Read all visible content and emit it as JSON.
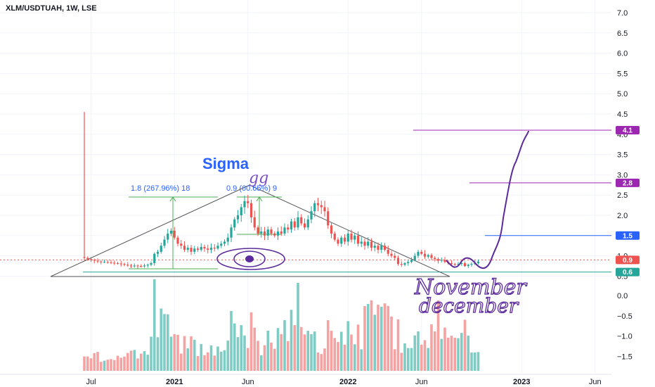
{
  "header": {
    "symbol_title": "XLM/USDTUAH, 1W, LSE"
  },
  "colors": {
    "up": "#26a69a",
    "down": "#ef5350",
    "vol_up": "#7fccc4",
    "vol_down": "#f4a3a2",
    "purple": "#9c27b0",
    "hand_purple": "#5b2b9c",
    "blue": "#2962ff",
    "green": "#4caf50",
    "teal": "#26a69a",
    "red": "#ef5350",
    "grid": "#f0f3fa",
    "trend": "#555555"
  },
  "annotations": {
    "sigma_label": "Sigma",
    "gg_label": "gg",
    "fib1_label": "1.8 (267.96%) 18",
    "fib2_label": "0.9 (60.65%) 9",
    "november_label": "November",
    "december_label": "december"
  },
  "chart_data": {
    "type": "candlestick",
    "title": "XLM/USDTUAH, 1W, LSE",
    "price_axis": {
      "ylim": [
        0.5,
        7.0
      ],
      "ticks": [
        7.0,
        6.5,
        6.0,
        5.5,
        5.0,
        4.5,
        4.0,
        3.5,
        3.0,
        2.5,
        2.0,
        1.5,
        1.0,
        0.5
      ],
      "tick_labels": [
        "7.0",
        "6.5",
        "6.0",
        "5.5",
        "5.0",
        "4.5",
        "4.0",
        "3.5",
        "3.0",
        "2.5",
        "2.0",
        "1.5",
        "1.0",
        "0.5"
      ]
    },
    "volume_axis": {
      "ticks": [
        0.0,
        -0.5,
        -1.0,
        -1.5
      ],
      "tick_labels": [
        "0.0",
        "−0.5",
        "−1.0",
        "−1.5"
      ]
    },
    "x_axis": {
      "tick_labels": [
        "Jul",
        "2021",
        "Jun",
        "2022",
        "Jun",
        "2023",
        "Jun"
      ],
      "tick_weeks": [
        2,
        27,
        49,
        79,
        101,
        131,
        153
      ]
    },
    "price_levels": [
      {
        "value": 4.1,
        "label": "4.1",
        "color": "#9c27b0"
      },
      {
        "value": 2.8,
        "label": "2.8",
        "color": "#9c27b0"
      },
      {
        "value": 1.5,
        "label": "1.5",
        "color": "#2962ff"
      },
      {
        "value": 0.9,
        "label": "0.9",
        "color": "#ef5350"
      },
      {
        "value": 0.6,
        "label": "0.6",
        "color": "#26a69a"
      }
    ],
    "candles_close": [
      0.95,
      0.92,
      0.9,
      0.88,
      0.86,
      0.85,
      0.85,
      0.84,
      0.83,
      0.82,
      0.81,
      0.8,
      0.78,
      0.76,
      0.74,
      0.76,
      0.75,
      0.74,
      0.76,
      0.78,
      0.82,
      1.05,
      1.1,
      1.25,
      1.4,
      1.55,
      1.62,
      1.45,
      1.3,
      1.25,
      1.15,
      1.2,
      1.1,
      1.18,
      1.15,
      1.22,
      1.18,
      1.15,
      1.2,
      1.18,
      1.25,
      1.3,
      1.35,
      1.45,
      1.7,
      1.9,
      2.0,
      2.2,
      2.35,
      2.3,
      1.95,
      1.7,
      1.55,
      1.6,
      1.5,
      1.65,
      1.55,
      1.5,
      1.6,
      1.55,
      1.7,
      1.65,
      1.85,
      1.7,
      1.95,
      1.8,
      1.7,
      1.9,
      2.1,
      2.3,
      2.25,
      2.2,
      2.1,
      1.75,
      1.55,
      1.4,
      1.3,
      1.45,
      1.35,
      1.55,
      1.4,
      1.5,
      1.3,
      1.35,
      1.25,
      1.35,
      1.2,
      1.25,
      1.15,
      1.25,
      1.15,
      1.05,
      1.0,
      0.95,
      0.8,
      0.78,
      0.82,
      0.85,
      0.9,
      1.0,
      1.1,
      1.05,
      0.98,
      1.02,
      0.95,
      0.92,
      0.88,
      0.9,
      0.85,
      0.82,
      0.8,
      0.78,
      0.8,
      0.82,
      0.75,
      0.78,
      0.8,
      0.82,
      0.86
    ]
  }
}
